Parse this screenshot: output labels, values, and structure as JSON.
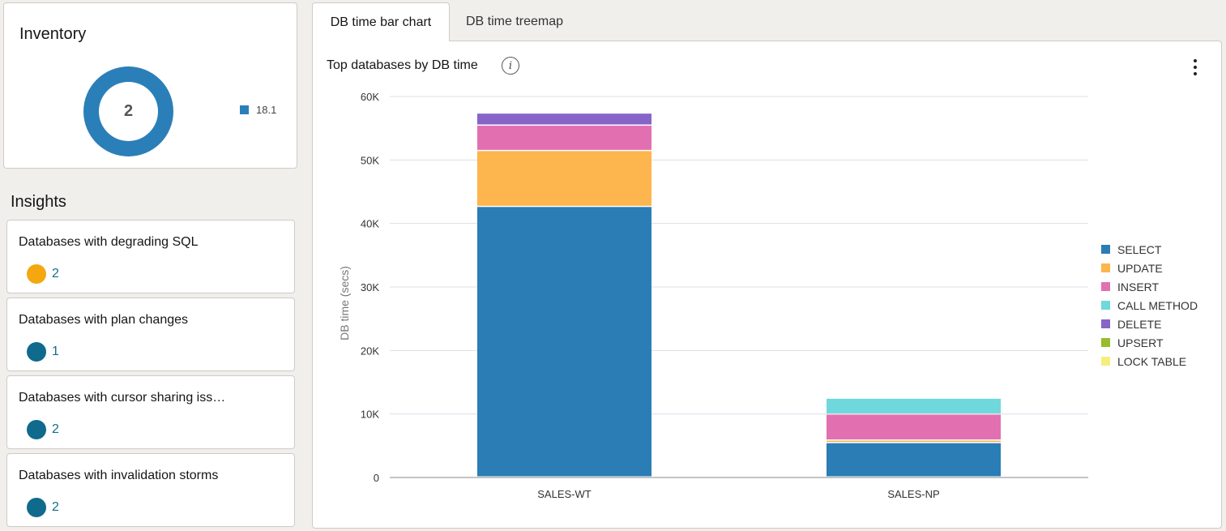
{
  "inventory": {
    "title": "Inventory",
    "total": "2",
    "legend": [
      {
        "label": "18.1",
        "color": "#2b7fb8"
      }
    ]
  },
  "insights": {
    "title": "Insights",
    "items": [
      {
        "label": "Databases with degrading SQL",
        "count": "2",
        "color": "#f5a70f"
      },
      {
        "label": "Databases with plan changes",
        "count": "1",
        "color": "#0f6a8c"
      },
      {
        "label": "Databases with cursor sharing iss…",
        "count": "2",
        "color": "#0f6a8c"
      },
      {
        "label": "Databases with invalidation storms",
        "count": "2",
        "color": "#0f6a8c"
      }
    ]
  },
  "tabs": [
    {
      "label": "DB time bar chart",
      "active": true
    },
    {
      "label": "DB time treemap",
      "active": false
    }
  ],
  "chart_panel": {
    "title": "Top databases by DB time",
    "info_icon": "info-icon",
    "menu_icon": "kebab-menu-icon"
  },
  "chart_data": {
    "type": "bar",
    "stacked": true,
    "title": "Top databases by DB time",
    "xlabel": "",
    "ylabel": "DB time (secs)",
    "ylim": [
      0,
      60000
    ],
    "yticks": [
      0,
      10000,
      20000,
      30000,
      40000,
      50000,
      60000
    ],
    "ytick_labels": [
      "0",
      "10K",
      "20K",
      "30K",
      "40K",
      "50K",
      "60K"
    ],
    "categories": [
      "SALES-WT",
      "SALES-NP"
    ],
    "series": [
      {
        "name": "SELECT",
        "color": "#2a7db5",
        "values": [
          42600,
          5400
        ]
      },
      {
        "name": "UPDATE",
        "color": "#fdb54d",
        "values": [
          8800,
          400
        ]
      },
      {
        "name": "INSERT",
        "color": "#e270b0",
        "values": [
          4000,
          4100
        ]
      },
      {
        "name": "CALL METHOD",
        "color": "#6ed8dc",
        "values": [
          0,
          2500
        ]
      },
      {
        "name": "DELETE",
        "color": "#8664c8",
        "values": [
          1900,
          0
        ]
      },
      {
        "name": "UPSERT",
        "color": "#99bc2c",
        "values": [
          0,
          0
        ]
      },
      {
        "name": "LOCK TABLE",
        "color": "#f6ee7c",
        "values": [
          0,
          0
        ]
      }
    ],
    "legend_position": "right"
  }
}
